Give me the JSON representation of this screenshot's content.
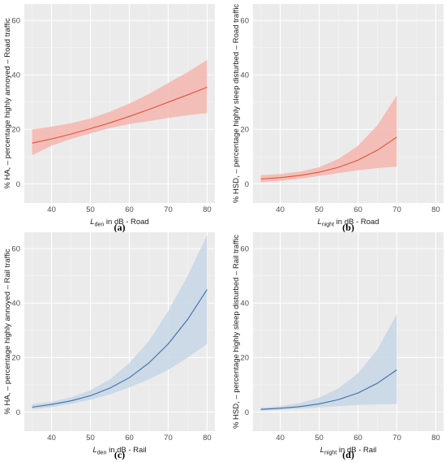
{
  "chart_data": [
    {
      "type": "line",
      "panel": "(a)",
      "xlabel": {
        "main": "L",
        "sub": "den",
        "rest": " in dB - Road"
      },
      "ylabel": "% HA, – percentage highly annoyed – Road traffic",
      "xlim": [
        33,
        82
      ],
      "ylim": [
        -7,
        66
      ],
      "xticks": [
        40,
        50,
        60,
        70,
        80
      ],
      "yticks": [
        0,
        20,
        40,
        60
      ],
      "color": "#e0533a",
      "band_color": "#f4b6ae",
      "series": [
        {
          "x": [
            35,
            40,
            45,
            50,
            55,
            60,
            65,
            70,
            75,
            80
          ],
          "y": [
            15,
            16.5,
            18.3,
            20.3,
            22.4,
            24.8,
            27.3,
            30.0,
            32.7,
            35.5
          ],
          "lower": [
            10.5,
            14,
            16.5,
            18.5,
            20.5,
            22,
            23,
            24.2,
            25.2,
            26
          ],
          "upper": [
            20,
            21,
            22.3,
            24,
            26.5,
            29.5,
            33,
            37,
            41,
            45.5
          ]
        }
      ]
    },
    {
      "type": "line",
      "panel": "(b)",
      "xlabel": {
        "main": "L",
        "sub": "night",
        "rest": " in dB - Road"
      },
      "ylabel": "% HSD, – percentage highly sleep disturbed – Road traffic",
      "xlim": [
        33,
        82
      ],
      "ylim": [
        -7,
        66
      ],
      "xticks": [
        40,
        50,
        60,
        70,
        80
      ],
      "yticks": [
        0,
        20,
        40,
        60
      ],
      "color": "#e0533a",
      "band_color": "#f4b6ae",
      "series": [
        {
          "x": [
            35,
            40,
            45,
            50,
            55,
            60,
            65,
            70
          ],
          "y": [
            1.8,
            2.3,
            3.1,
            4.3,
            6.1,
            8.7,
            12.4,
            17.2
          ],
          "lower": [
            0.6,
            1.1,
            1.9,
            2.9,
            4.0,
            5.0,
            5.8,
            6.3
          ],
          "upper": [
            3.2,
            3.6,
            4.5,
            6.1,
            9.2,
            14.0,
            21.5,
            32.5
          ]
        }
      ]
    },
    {
      "type": "line",
      "panel": "(c)",
      "xlabel": {
        "main": "L",
        "sub": "den",
        "rest": " in dB - Rail"
      },
      "ylabel": "% HA, – percentage highly annoyed – Rail traffic",
      "xlim": [
        33,
        82
      ],
      "ylim": [
        -7,
        66
      ],
      "xticks": [
        40,
        50,
        60,
        70,
        80
      ],
      "yticks": [
        0,
        20,
        40,
        60
      ],
      "color": "#3a6fa8",
      "band_color": "#c7d6e6",
      "series": [
        {
          "x": [
            35,
            40,
            45,
            50,
            55,
            60,
            65,
            70,
            75,
            80
          ],
          "y": [
            1.8,
            2.8,
            4.1,
            6.0,
            8.8,
            12.6,
            18.0,
            25.0,
            34.0,
            45.0
          ],
          "lower": [
            1.0,
            1.8,
            3.0,
            4.5,
            6.5,
            9.0,
            12.0,
            15.5,
            20.0,
            25.0
          ],
          "upper": [
            2.9,
            3.8,
            5.4,
            8.0,
            12.0,
            18.0,
            26.0,
            37.0,
            50.0,
            65.0
          ]
        }
      ]
    },
    {
      "type": "line",
      "panel": "(d)",
      "xlabel": {
        "main": "L",
        "sub": "night",
        "rest": " in dB - Rail"
      },
      "ylabel": "% HSD, – percentage highly sleep disturbed – Rail traffic",
      "xlim": [
        33,
        82
      ],
      "ylim": [
        -7,
        66
      ],
      "xticks": [
        40,
        50,
        60,
        70,
        80
      ],
      "yticks": [
        0,
        20,
        40,
        60
      ],
      "color": "#3a6fa8",
      "band_color": "#c7d6e6",
      "series": [
        {
          "x": [
            35,
            40,
            45,
            50,
            55,
            60,
            65,
            70
          ],
          "y": [
            1.0,
            1.4,
            2.0,
            3.0,
            4.6,
            7.0,
            10.6,
            15.5
          ],
          "lower": [
            0.5,
            0.8,
            1.2,
            1.7,
            2.2,
            2.6,
            2.8,
            3.0
          ],
          "upper": [
            1.6,
            2.2,
            3.3,
            5.3,
            8.7,
            14.2,
            23.0,
            36.0
          ]
        }
      ]
    }
  ]
}
